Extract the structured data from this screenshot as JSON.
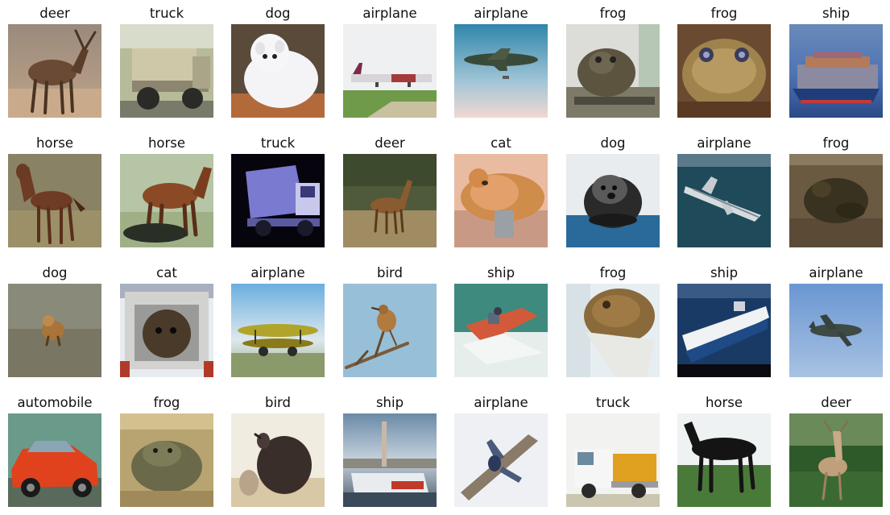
{
  "figure": {
    "rows": [
      [
        "deer",
        "truck",
        "dog",
        "airplane",
        "airplane",
        "frog",
        "frog",
        "ship"
      ],
      [
        "horse",
        "horse",
        "truck",
        "deer",
        "cat",
        "dog",
        "airplane",
        "frog"
      ],
      [
        "dog",
        "cat",
        "airplane",
        "bird",
        "ship",
        "frog",
        "ship",
        "airplane"
      ],
      [
        "automobile",
        "frog",
        "bird",
        "ship",
        "airplane",
        "truck",
        "horse",
        "deer"
      ]
    ]
  }
}
